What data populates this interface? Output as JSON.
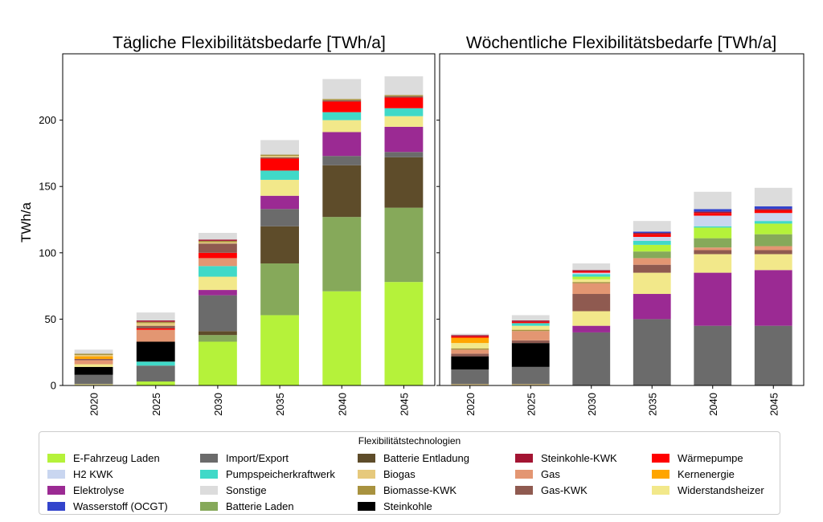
{
  "chart_data": [
    {
      "type": "bar",
      "stacked": true,
      "title": "Tägliche Flexibilitätsbedarfe [TWh/a]",
      "ylabel": "TWh/a",
      "ylim": [
        0,
        250
      ],
      "yticks": [
        "0",
        "50",
        "100",
        "150",
        "200"
      ],
      "categories": [
        "2020",
        "2025",
        "2030",
        "2035",
        "2040",
        "2045"
      ],
      "series": [
        {
          "name": "E-Fahrzeug Laden",
          "color": "#b5f23a",
          "values": [
            0,
            3,
            33,
            53,
            71,
            78
          ]
        },
        {
          "name": "Widerstandsheizer",
          "color": "#f2e88a",
          "values": [
            1,
            0,
            0,
            0,
            0,
            0
          ]
        },
        {
          "name": "Batterie Laden",
          "color": "#86a95a",
          "values": [
            0,
            0,
            5,
            39,
            56,
            56
          ]
        },
        {
          "name": "Batterie Entladung",
          "color": "#5e4c2a",
          "values": [
            0,
            0,
            3,
            28,
            39,
            38
          ]
        },
        {
          "name": "Import/Export",
          "color": "#6b6b6b",
          "values": [
            7,
            12,
            27,
            13,
            7,
            4
          ]
        },
        {
          "name": "Pumpspeicherkraftwerk",
          "color": "#40d9c8",
          "values": [
            0,
            3,
            0,
            0,
            0,
            0
          ]
        },
        {
          "name": "Steinkohle",
          "color": "#000000",
          "values": [
            6,
            15,
            0,
            0,
            0,
            0
          ]
        },
        {
          "name": "Elektrolyse",
          "color": "#9b2a93",
          "values": [
            0,
            0,
            4,
            10,
            18,
            19
          ]
        },
        {
          "name": "Widerstandsheizer",
          "color": "#f2e88a",
          "values": [
            2,
            0,
            10,
            12,
            9,
            8
          ]
        },
        {
          "name": "Pumpspeicherkraftwerk",
          "color": "#40d9c8",
          "values": [
            0,
            0,
            8,
            7,
            6,
            6
          ]
        },
        {
          "name": "Gas",
          "color": "#e39672",
          "values": [
            3,
            9,
            6,
            0,
            0,
            0
          ]
        },
        {
          "name": "Wärmepumpe",
          "color": "#ff0000",
          "values": [
            0,
            1,
            4,
            9,
            8,
            8
          ]
        },
        {
          "name": "Gas-KWK",
          "color": "#8f5a50",
          "values": [
            1,
            2,
            7,
            1,
            1,
            1
          ]
        },
        {
          "name": "Kernenergie",
          "color": "#ffa500",
          "values": [
            2,
            0,
            0,
            0,
            0,
            0
          ]
        },
        {
          "name": "Biogas",
          "color": "#e6c97c",
          "values": [
            1,
            2,
            1,
            1,
            0,
            0
          ]
        },
        {
          "name": "Biomasse-KWK",
          "color": "#a8923f",
          "values": [
            1,
            1,
            1,
            1,
            1,
            1
          ]
        },
        {
          "name": "Steinkohle-KWK",
          "color": "#a31432",
          "values": [
            0,
            1,
            1,
            0,
            0,
            0
          ]
        },
        {
          "name": "Sonstige",
          "color": "#dcdcdc",
          "values": [
            3,
            6,
            5,
            11,
            15,
            14
          ]
        }
      ]
    },
    {
      "type": "bar",
      "stacked": true,
      "title": "Wöchentliche Flexibilitätsbedarfe [TWh/a]",
      "ylabel": "",
      "ylim": [
        0,
        250
      ],
      "categories": [
        "2020",
        "2025",
        "2030",
        "2035",
        "2040",
        "2045"
      ],
      "series": [
        {
          "name": "Biogas",
          "color": "#e6c97c",
          "values": [
            1,
            1,
            0,
            0,
            0,
            0
          ]
        },
        {
          "name": "Import/Export",
          "color": "#6b6b6b",
          "values": [
            11,
            13,
            40,
            50,
            45,
            45
          ]
        },
        {
          "name": "Steinkohle",
          "color": "#000000",
          "values": [
            10,
            18,
            0,
            0,
            0,
            0
          ]
        },
        {
          "name": "Elektrolyse",
          "color": "#9b2a93",
          "values": [
            0,
            0,
            5,
            19,
            40,
            42
          ]
        },
        {
          "name": "Widerstandsheizer",
          "color": "#f2e88a",
          "values": [
            0,
            0,
            11,
            16,
            14,
            12
          ]
        },
        {
          "name": "Gas-KWK",
          "color": "#8f5a50",
          "values": [
            2,
            2,
            13,
            6,
            3,
            3
          ]
        },
        {
          "name": "Gas",
          "color": "#e39672",
          "values": [
            3,
            7,
            8,
            5,
            2,
            3
          ]
        },
        {
          "name": "Batterie Entladung",
          "color": "#5e4c2a",
          "values": [
            0,
            0,
            0,
            0,
            0,
            0
          ]
        },
        {
          "name": "Batterie Laden",
          "color": "#86a95a",
          "values": [
            0,
            0,
            0,
            5,
            7,
            9
          ]
        },
        {
          "name": "Biomasse-KWK",
          "color": "#a8923f",
          "values": [
            1,
            1,
            1,
            0,
            0,
            0
          ]
        },
        {
          "name": "Widerstandsheizer",
          "color": "#f2e88a",
          "values": [
            4,
            3,
            2,
            0,
            0,
            0
          ]
        },
        {
          "name": "E-Fahrzeug Laden",
          "color": "#b5f23a",
          "values": [
            0,
            0,
            2,
            5,
            8,
            8
          ]
        },
        {
          "name": "Pumpspeicherkraftwerk",
          "color": "#40d9c8",
          "values": [
            0,
            2,
            2,
            3,
            1,
            2
          ]
        },
        {
          "name": "H2 KWK",
          "color": "#c9d6f0",
          "values": [
            0,
            0,
            1,
            3,
            8,
            6
          ]
        },
        {
          "name": "Kernenergie",
          "color": "#ffa500",
          "values": [
            4,
            0,
            0,
            0,
            0,
            0
          ]
        },
        {
          "name": "Wärmepumpe",
          "color": "#ff0000",
          "values": [
            1,
            1,
            1,
            2,
            2,
            2
          ]
        },
        {
          "name": "Steinkohle-KWK",
          "color": "#a31432",
          "values": [
            1,
            1,
            1,
            1,
            1,
            1
          ]
        },
        {
          "name": "Wasserstoff (OCGT)",
          "color": "#3344cc",
          "values": [
            0,
            0,
            0,
            1,
            2,
            2
          ]
        },
        {
          "name": "Sonstige",
          "color": "#dcdcdc",
          "values": [
            1,
            4,
            5,
            8,
            13,
            14
          ]
        }
      ]
    }
  ],
  "legend": {
    "title": "Flexibilitätstechnologien",
    "items": [
      {
        "label": "E-Fahrzeug Laden",
        "color": "#b5f23a"
      },
      {
        "label": "H2 KWK",
        "color": "#c9d6f0"
      },
      {
        "label": "Elektrolyse",
        "color": "#9b2a93"
      },
      {
        "label": "Wasserstoff (OCGT)",
        "color": "#3344cc"
      },
      {
        "label": "Import/Export",
        "color": "#6b6b6b"
      },
      {
        "label": "Pumpspeicherkraftwerk",
        "color": "#40d9c8"
      },
      {
        "label": "Sonstige",
        "color": "#dcdcdc"
      },
      {
        "label": "Batterie Laden",
        "color": "#86a95a"
      },
      {
        "label": "Batterie Entladung",
        "color": "#5e4c2a"
      },
      {
        "label": "Biogas",
        "color": "#e6c97c"
      },
      {
        "label": "Biomasse-KWK",
        "color": "#a8923f"
      },
      {
        "label": "Steinkohle",
        "color": "#000000"
      },
      {
        "label": "Steinkohle-KWK",
        "color": "#a31432"
      },
      {
        "label": "Gas",
        "color": "#e39672"
      },
      {
        "label": "Gas-KWK",
        "color": "#8f5a50"
      },
      {
        "label": "",
        "color": ""
      },
      {
        "label": "Wärmepumpe",
        "color": "#ff0000"
      },
      {
        "label": "Kernenergie",
        "color": "#ffa500"
      },
      {
        "label": "Widerstandsheizer",
        "color": "#f2e88a"
      }
    ]
  }
}
